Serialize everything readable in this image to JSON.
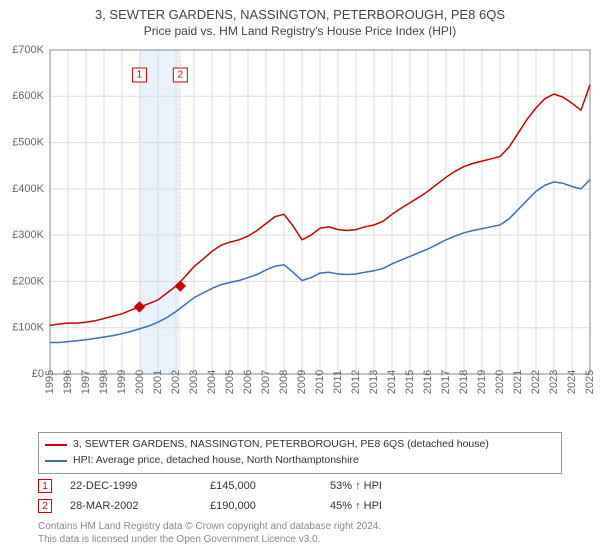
{
  "title": "3, SEWTER GARDENS, NASSINGTON, PETERBOROUGH, PE8 6QS",
  "subtitle": "Price paid vs. HM Land Registry's House Price Index (HPI)",
  "chart": {
    "type": "line",
    "background_color": "#ffffff",
    "grid_color": "#dddddd",
    "border_color": "#888888",
    "highlight_band_color": "#eaf2fb",
    "x_axis": {
      "min": 1995,
      "max": 2025,
      "years": [
        1995,
        1996,
        1997,
        1998,
        1999,
        2000,
        2001,
        2002,
        2003,
        2004,
        2005,
        2006,
        2007,
        2008,
        2009,
        2010,
        2011,
        2012,
        2013,
        2014,
        2015,
        2016,
        2017,
        2018,
        2019,
        2020,
        2021,
        2022,
        2023,
        2024,
        2025
      ],
      "label_fontsize": 11,
      "rotate": -90
    },
    "y_axis": {
      "min": 0,
      "max": 700000,
      "tick_step": 100000,
      "tick_labels": [
        "£0",
        "£100K",
        "£200K",
        "£300K",
        "£400K",
        "£500K",
        "£600K",
        "£700K"
      ],
      "label_fontsize": 11
    },
    "series": [
      {
        "name": "3, SEWTER GARDENS, NASSINGTON, PETERBOROUGH, PE8 6QS (detached house)",
        "color": "#cc0000",
        "line_width": 1.5,
        "data": [
          [
            1995,
            105000
          ],
          [
            1995.5,
            108000
          ],
          [
            1996,
            110000
          ],
          [
            1996.5,
            110000
          ],
          [
            1997,
            112000
          ],
          [
            1997.5,
            115000
          ],
          [
            1998,
            120000
          ],
          [
            1998.5,
            125000
          ],
          [
            1999,
            130000
          ],
          [
            1999.5,
            138000
          ],
          [
            2000,
            145000
          ],
          [
            2000.5,
            152000
          ],
          [
            2001,
            160000
          ],
          [
            2001.5,
            175000
          ],
          [
            2002,
            190000
          ],
          [
            2002.5,
            210000
          ],
          [
            2003,
            232000
          ],
          [
            2003.5,
            248000
          ],
          [
            2004,
            265000
          ],
          [
            2004.5,
            278000
          ],
          [
            2005,
            285000
          ],
          [
            2005.5,
            290000
          ],
          [
            2006,
            298000
          ],
          [
            2006.5,
            310000
          ],
          [
            2007,
            325000
          ],
          [
            2007.5,
            340000
          ],
          [
            2008,
            345000
          ],
          [
            2008.5,
            320000
          ],
          [
            2009,
            290000
          ],
          [
            2009.5,
            300000
          ],
          [
            2010,
            315000
          ],
          [
            2010.5,
            318000
          ],
          [
            2011,
            312000
          ],
          [
            2011.5,
            310000
          ],
          [
            2012,
            312000
          ],
          [
            2012.5,
            318000
          ],
          [
            2013,
            322000
          ],
          [
            2013.5,
            330000
          ],
          [
            2014,
            345000
          ],
          [
            2014.5,
            358000
          ],
          [
            2015,
            370000
          ],
          [
            2015.5,
            382000
          ],
          [
            2016,
            395000
          ],
          [
            2016.5,
            410000
          ],
          [
            2017,
            425000
          ],
          [
            2017.5,
            438000
          ],
          [
            2018,
            448000
          ],
          [
            2018.5,
            455000
          ],
          [
            2019,
            460000
          ],
          [
            2019.5,
            465000
          ],
          [
            2020,
            470000
          ],
          [
            2020.5,
            490000
          ],
          [
            2021,
            520000
          ],
          [
            2021.5,
            550000
          ],
          [
            2022,
            575000
          ],
          [
            2022.5,
            595000
          ],
          [
            2023,
            605000
          ],
          [
            2023.5,
            598000
          ],
          [
            2024,
            585000
          ],
          [
            2024.5,
            570000
          ],
          [
            2025,
            625000
          ]
        ]
      },
      {
        "name": "HPI: Average price, detached house, North Northamptonshire",
        "color": "#3b6fb6",
        "line_width": 1.5,
        "data": [
          [
            1995,
            68000
          ],
          [
            1995.5,
            68000
          ],
          [
            1996,
            70000
          ],
          [
            1996.5,
            72000
          ],
          [
            1997,
            74000
          ],
          [
            1997.5,
            77000
          ],
          [
            1998,
            80000
          ],
          [
            1998.5,
            83000
          ],
          [
            1999,
            87000
          ],
          [
            1999.5,
            92000
          ],
          [
            2000,
            98000
          ],
          [
            2000.5,
            104000
          ],
          [
            2001,
            112000
          ],
          [
            2001.5,
            122000
          ],
          [
            2002,
            135000
          ],
          [
            2002.5,
            150000
          ],
          [
            2003,
            165000
          ],
          [
            2003.5,
            175000
          ],
          [
            2004,
            185000
          ],
          [
            2004.5,
            193000
          ],
          [
            2005,
            198000
          ],
          [
            2005.5,
            202000
          ],
          [
            2006,
            208000
          ],
          [
            2006.5,
            215000
          ],
          [
            2007,
            225000
          ],
          [
            2007.5,
            233000
          ],
          [
            2008,
            236000
          ],
          [
            2008.5,
            220000
          ],
          [
            2009,
            202000
          ],
          [
            2009.5,
            208000
          ],
          [
            2010,
            218000
          ],
          [
            2010.5,
            220000
          ],
          [
            2011,
            216000
          ],
          [
            2011.5,
            215000
          ],
          [
            2012,
            216000
          ],
          [
            2012.5,
            220000
          ],
          [
            2013,
            223000
          ],
          [
            2013.5,
            228000
          ],
          [
            2014,
            238000
          ],
          [
            2014.5,
            246000
          ],
          [
            2015,
            254000
          ],
          [
            2015.5,
            262000
          ],
          [
            2016,
            270000
          ],
          [
            2016.5,
            280000
          ],
          [
            2017,
            290000
          ],
          [
            2017.5,
            298000
          ],
          [
            2018,
            305000
          ],
          [
            2018.5,
            310000
          ],
          [
            2019,
            314000
          ],
          [
            2019.5,
            318000
          ],
          [
            2020,
            322000
          ],
          [
            2020.5,
            335000
          ],
          [
            2021,
            355000
          ],
          [
            2021.5,
            375000
          ],
          [
            2022,
            395000
          ],
          [
            2022.5,
            408000
          ],
          [
            2023,
            415000
          ],
          [
            2023.5,
            412000
          ],
          [
            2024,
            405000
          ],
          [
            2024.5,
            400000
          ],
          [
            2025,
            420000
          ]
        ]
      }
    ],
    "sale_markers": [
      {
        "n": "1",
        "year": 1999.97,
        "price": 145000,
        "color": "#cc0000"
      },
      {
        "n": "2",
        "year": 2002.24,
        "price": 190000,
        "color": "#cc0000"
      }
    ],
    "marker_style": {
      "size": 5,
      "shape": "diamond",
      "fill": "#cc0000",
      "stroke": "#cc0000"
    },
    "flag_box": {
      "border": "#cc0000",
      "fill": "#ffffff",
      "text_color": "#cc0000",
      "size": 14
    }
  },
  "legend": {
    "items": [
      {
        "label": "3, SEWTER GARDENS, NASSINGTON, PETERBOROUGH, PE8 6QS (detached house)",
        "color": "#cc0000"
      },
      {
        "label": "HPI: Average price, detached house, North Northamptonshire",
        "color": "#3b6fb6"
      }
    ]
  },
  "sales_table": {
    "rows": [
      {
        "n": "1",
        "date": "22-DEC-1999",
        "price": "£145,000",
        "relative": "53% ↑ HPI",
        "color": "#cc0000"
      },
      {
        "n": "2",
        "date": "28-MAR-2002",
        "price": "£190,000",
        "relative": "45% ↑ HPI",
        "color": "#cc0000"
      }
    ]
  },
  "footer": {
    "line1": "Contains HM Land Registry data © Crown copyright and database right 2024.",
    "line2": "This data is licensed under the Open Government Licence v3.0."
  }
}
